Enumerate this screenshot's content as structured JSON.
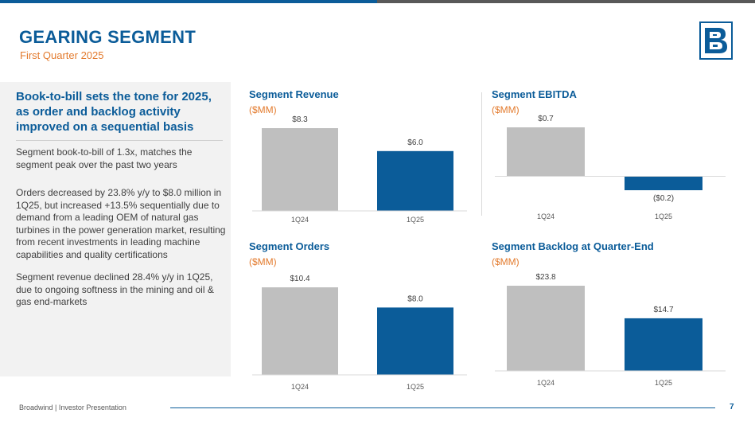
{
  "header": {
    "title": "GEARING SEGMENT",
    "subtitle": "First Quarter 2025"
  },
  "logo": {
    "icon": "broadwind-logo-icon"
  },
  "left_panel": {
    "headline": "Book-to-bill sets the tone for 2025, as order and backlog activity improved on a sequential basis",
    "paragraphs": [
      "Segment book-to-bill of 1.3x, matches the segment peak over the past two years",
      "Orders decreased by 23.8% y/y to $8.0 million in 1Q25, but increased +13.5% sequentially due to demand from a leading OEM of natural gas turbines in the power generation market, resulting from recent investments in leading machine capabilities and quality certifications",
      "Segment revenue declined 28.4% y/y in 1Q25, due to ongoing softness in the mining and oil & gas end-markets"
    ]
  },
  "colors": {
    "blue": "#0b5c99",
    "gray": "#bfbfbf",
    "orange": "#e37b2e"
  },
  "chart_data": [
    {
      "type": "bar",
      "title": "Segment Revenue",
      "unit": "($MM)",
      "categories": [
        "1Q24",
        "1Q25"
      ],
      "values": [
        8.3,
        6.0
      ],
      "data_labels": [
        "$8.3",
        "$6.0"
      ],
      "ylim": [
        0,
        8.3
      ]
    },
    {
      "type": "bar",
      "title": "Segment EBITDA",
      "unit": "($MM)",
      "categories": [
        "1Q24",
        "1Q25"
      ],
      "values": [
        0.7,
        -0.2
      ],
      "data_labels": [
        "$0.7",
        "($0.2)"
      ],
      "ylim": [
        -0.2,
        0.7
      ]
    },
    {
      "type": "bar",
      "title": "Segment Orders",
      "unit": "($MM)",
      "categories": [
        "1Q24",
        "1Q25"
      ],
      "values": [
        10.4,
        8.0
      ],
      "data_labels": [
        "$10.4",
        "$8.0"
      ],
      "ylim": [
        0,
        10.4
      ]
    },
    {
      "type": "bar",
      "title": "Segment Backlog at Quarter-End",
      "unit": "($MM)",
      "categories": [
        "1Q24",
        "1Q25"
      ],
      "values": [
        23.8,
        14.7
      ],
      "data_labels": [
        "$23.8",
        "$14.7"
      ],
      "ylim": [
        0,
        23.8
      ]
    }
  ],
  "footer": {
    "text": "Broadwind | Investor Presentation",
    "page": "7"
  }
}
